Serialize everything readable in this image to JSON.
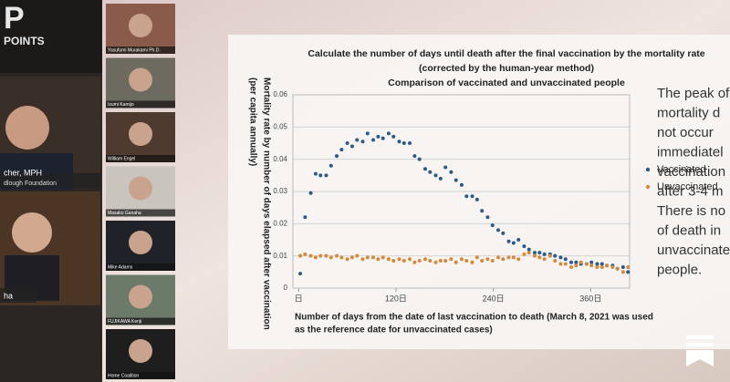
{
  "header": {
    "logo": "P",
    "brand": "POINTS"
  },
  "speakers": {
    "main_name": "cher, MPH",
    "main_org": "dlough Foundation",
    "second_name": "ha"
  },
  "participants": [
    {
      "label": "Yasufumi Murakami Ph.D."
    },
    {
      "label": "Izumi Kamijo"
    },
    {
      "label": "William Engel"
    },
    {
      "label": "Masako Ganaha"
    },
    {
      "label": "Mike Adams"
    },
    {
      "label": "FUJIKAWA Kenji"
    },
    {
      "label": "Home Coalition"
    }
  ],
  "slide_text": [
    "The peak of",
    "mortality d",
    "not occur",
    "immediatel",
    "vaccination",
    "after 3-4 m",
    "There is no",
    "of death in",
    "unvaccinate",
    "people."
  ],
  "chart_data": {
    "type": "scatter",
    "title": [
      "Calculate the number of days until death after the final vaccination by the mortality rate",
      "(corrected by the human-year method)",
      "Comparison of vaccinated and unvaccinated people"
    ],
    "y_label": [
      "Mortality rate by number of days elapsed after vaccination",
      "(per capita annually)"
    ],
    "x_label": [
      "Number of days from the date of last vaccination to death (March 8, 2021 was used",
      "as the reference date for unvaccinated cases)"
    ],
    "x": [
      2,
      8,
      15,
      21,
      27,
      34,
      40,
      47,
      53,
      60,
      66,
      72,
      79,
      85,
      92,
      98,
      104,
      111,
      117,
      124,
      130,
      137,
      143,
      149,
      156,
      162,
      169,
      175,
      181,
      188,
      194,
      201,
      207,
      214,
      220,
      226,
      233,
      239,
      246,
      252,
      259,
      265,
      271,
      278,
      284,
      291,
      297,
      303,
      310,
      316,
      323,
      329,
      336,
      342,
      348,
      355,
      361,
      368,
      374,
      380,
      387,
      393,
      400,
      406
    ],
    "series": [
      {
        "name": "Vaccinated",
        "color": "#2a5a8c",
        "values": [
          0.0045,
          0.022,
          0.0295,
          0.0355,
          0.035,
          0.035,
          0.038,
          0.041,
          0.043,
          0.045,
          0.044,
          0.046,
          0.0455,
          0.048,
          0.046,
          0.047,
          0.0465,
          0.048,
          0.047,
          0.0455,
          0.045,
          0.045,
          0.041,
          0.04,
          0.037,
          0.036,
          0.035,
          0.034,
          0.0375,
          0.036,
          0.0335,
          0.032,
          0.0285,
          0.0285,
          0.0275,
          0.024,
          0.022,
          0.0195,
          0.018,
          0.017,
          0.0145,
          0.014,
          0.015,
          0.013,
          0.012,
          0.011,
          0.011,
          0.0105,
          0.0105,
          0.01,
          0.0095,
          0.009,
          0.008,
          0.008,
          0.0075,
          0.0075,
          0.008,
          0.0075,
          0.0075,
          0.007,
          0.007,
          0.006,
          0.0065,
          0.005
        ]
      },
      {
        "name": "Unvaccinated",
        "color": "#d48a3c",
        "values": [
          0.01,
          0.0105,
          0.01,
          0.0095,
          0.01,
          0.01,
          0.0095,
          0.01,
          0.0095,
          0.009,
          0.0095,
          0.01,
          0.009,
          0.0095,
          0.0095,
          0.009,
          0.0095,
          0.009,
          0.0085,
          0.009,
          0.0085,
          0.009,
          0.008,
          0.0085,
          0.009,
          0.0085,
          0.008,
          0.0085,
          0.0085,
          0.009,
          0.008,
          0.009,
          0.0085,
          0.008,
          0.0095,
          0.0085,
          0.009,
          0.0085,
          0.0095,
          0.009,
          0.0095,
          0.0095,
          0.009,
          0.0105,
          0.011,
          0.01,
          0.0095,
          0.009,
          0.01,
          0.0085,
          0.0075,
          0.0075,
          0.0065,
          0.007,
          0.008,
          0.0075,
          0.007,
          0.0065,
          0.0065,
          0.007,
          0.0065,
          0.006,
          0.005,
          0.0065
        ]
      }
    ],
    "xlim": [
      -7,
      408
    ],
    "xticks": [
      {
        "value": 0,
        "label": "日"
      },
      {
        "value": 120,
        "label": "120日"
      },
      {
        "value": 240,
        "label": "240日"
      },
      {
        "value": 360,
        "label": "360日"
      }
    ],
    "ylim": [
      0,
      0.06
    ],
    "yticks": [
      0,
      0.01,
      0.02,
      0.03,
      0.04,
      0.05,
      0.06
    ],
    "grid": true
  }
}
